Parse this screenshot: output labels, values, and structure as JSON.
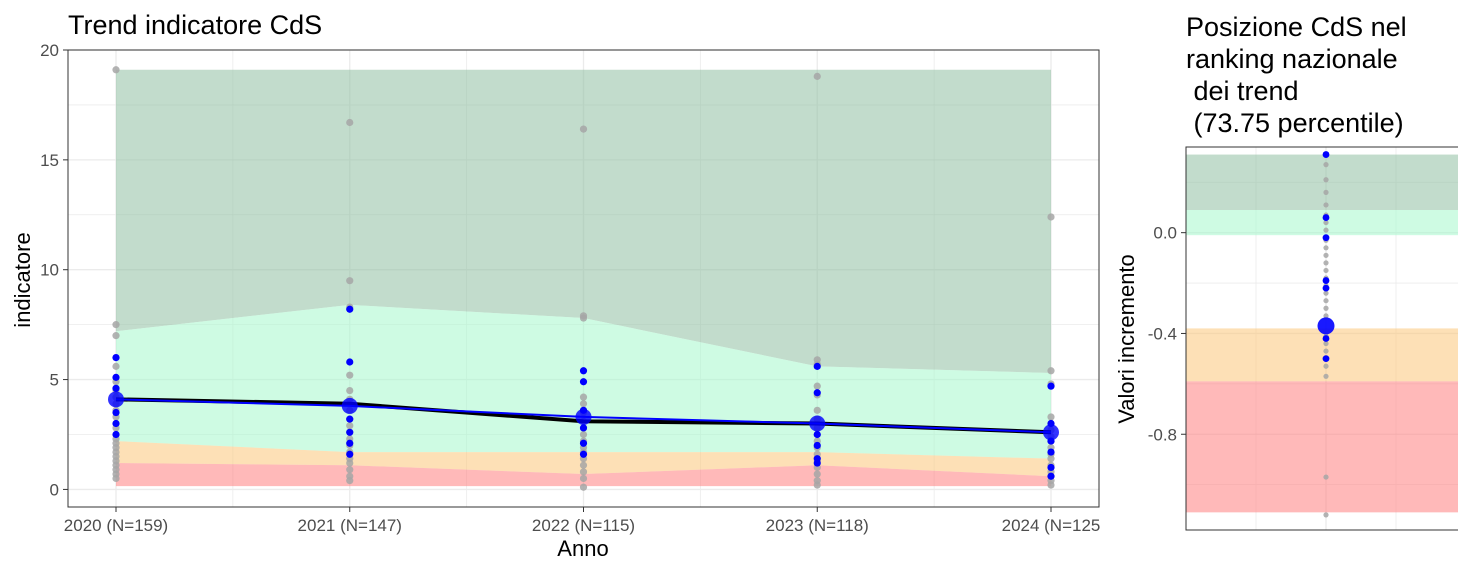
{
  "colors": {
    "band_top": "#8fbfa2",
    "band_high": "#a6f7cc",
    "band_low": "#fbc77a",
    "band_bottom": "#ff7f7f",
    "trend_cds": "#0000ff",
    "trend_median": "#000000",
    "dots_other": "#a6a6a6",
    "dots_cds": "#0000ff",
    "grid": "#ebebeb",
    "panel_border": "#333333"
  },
  "chart_data": [
    {
      "type": "area",
      "title": "Trend indicatore CdS",
      "xlabel": "Anno",
      "ylabel": "indicatore",
      "categories": [
        "2020 (N=159)",
        "2021 (N=147)",
        "2022 (N=115)",
        "2023 (N=118)",
        "2024 (N=125"
      ],
      "ylim": [
        -0.8,
        20
      ],
      "yticks": [
        0,
        5,
        10,
        15,
        20
      ],
      "grid": true,
      "bands": [
        {
          "lower": [
            7.2,
            8.4,
            7.8,
            5.6,
            5.3
          ],
          "upper": [
            19.1,
            19.1,
            19.1,
            19.1,
            19.1
          ],
          "color": "band_top"
        },
        {
          "lower": [
            2.2,
            1.7,
            1.7,
            1.7,
            1.4
          ],
          "upper": [
            7.2,
            8.4,
            7.8,
            5.6,
            5.3
          ],
          "color": "band_high"
        },
        {
          "lower": [
            1.2,
            1.1,
            0.7,
            1.1,
            0.6
          ],
          "upper": [
            2.2,
            1.7,
            1.7,
            1.7,
            1.4
          ],
          "color": "band_low"
        },
        {
          "lower": [
            0.15,
            0.15,
            0.15,
            0.15,
            0.15
          ],
          "upper": [
            1.2,
            1.1,
            0.7,
            1.1,
            0.6
          ],
          "color": "band_bottom"
        }
      ],
      "series": [
        {
          "values": [
            4.1,
            3.9,
            3.1,
            3.0,
            2.6
          ],
          "color": "trend_median",
          "width": 4
        },
        {
          "values": [
            4.1,
            3.8,
            3.3,
            3.0,
            2.6
          ],
          "color": "trend_cds",
          "width": 2,
          "markers": true
        }
      ],
      "points_other": [
        [
          19.1,
          7.5,
          7.0,
          5.6,
          4.9,
          4.5,
          4.2,
          3.9,
          3.6,
          3.3,
          3.0,
          2.8,
          2.5,
          2.3,
          2.1,
          1.9,
          1.7,
          1.5,
          1.3,
          1.1,
          0.9,
          0.7,
          0.5
        ],
        [
          16.7,
          9.5,
          8.3,
          5.2,
          4.5,
          4.1,
          3.6,
          3.2,
          2.9,
          2.6,
          2.3,
          2.0,
          1.7,
          1.4,
          1.2,
          0.9,
          0.6,
          0.4
        ],
        [
          16.4,
          7.9,
          7.8,
          4.2,
          3.9,
          3.5,
          3.1,
          2.8,
          2.5,
          2.2,
          1.9,
          1.7,
          1.4,
          1.1,
          0.8,
          0.5,
          0.1
        ],
        [
          18.8,
          5.9,
          5.7,
          4.7,
          4.3,
          3.6,
          3.2,
          2.8,
          2.5,
          2.2,
          1.9,
          1.6,
          1.3,
          1.0,
          0.7,
          0.4,
          0.2
        ],
        [
          12.4,
          5.4,
          4.8,
          3.3,
          3.0,
          2.7,
          2.4,
          2.2,
          1.9,
          1.6,
          1.4,
          1.1,
          0.8,
          0.6,
          0.4,
          0.2
        ]
      ],
      "points_cds": [
        [
          6.0,
          5.1,
          4.6,
          3.5,
          3.0,
          2.5
        ],
        [
          8.2,
          5.8,
          3.2,
          2.6,
          2.1,
          1.6
        ],
        [
          5.4,
          4.9,
          3.6,
          2.8,
          2.1,
          1.6
        ],
        [
          5.6,
          4.4,
          2.5,
          2.0,
          1.4,
          1.2
        ],
        [
          4.7,
          3.0,
          2.2,
          1.7,
          1.0,
          0.6
        ]
      ]
    },
    {
      "type": "scatter",
      "title_lines": [
        "Posizione CdS nel",
        "ranking nazionale",
        " dei trend",
        " (73.75 percentile)"
      ],
      "ylabel": "Valori incremento",
      "ylim": [
        -1.18,
        0.34
      ],
      "yticks": [
        -0.8,
        -0.4,
        0.0
      ],
      "ytick_labels": [
        "-0.8",
        "-0.4",
        "0.0"
      ],
      "grid": true,
      "bands": [
        {
          "lower": 0.09,
          "upper": 0.31,
          "color": "band_top"
        },
        {
          "lower": -0.01,
          "upper": 0.09,
          "color": "band_high"
        },
        {
          "lower": -0.59,
          "upper": -0.38,
          "color": "band_low"
        },
        {
          "lower": -1.11,
          "upper": -0.59,
          "color": "band_bottom"
        }
      ],
      "highlight": {
        "value": -0.37,
        "percentile": 73.75
      },
      "points_other": [
        0.31,
        0.27,
        0.21,
        0.16,
        0.11,
        0.07,
        0.04,
        0.01,
        -0.03,
        -0.06,
        -0.09,
        -0.12,
        -0.15,
        -0.18,
        -0.21,
        -0.24,
        -0.27,
        -0.3,
        -0.33,
        -0.41,
        -0.44,
        -0.47,
        -0.53,
        -0.57,
        -0.97,
        -1.12
      ],
      "points_cds": [
        0.31,
        0.06,
        -0.02,
        -0.19,
        -0.22,
        -0.42,
        -0.5
      ]
    }
  ]
}
